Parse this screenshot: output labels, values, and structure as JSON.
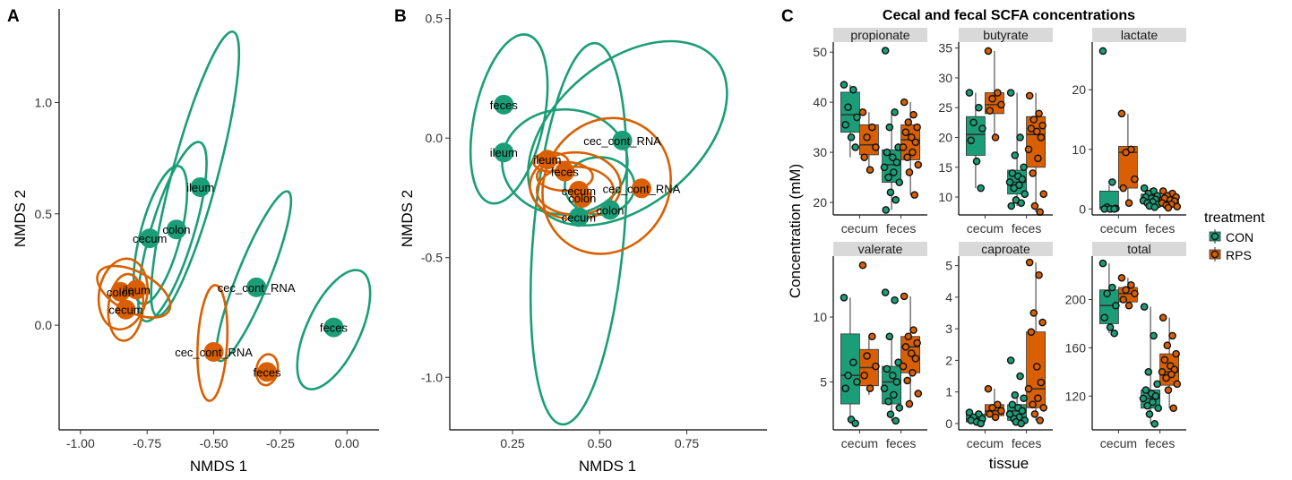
{
  "colors": {
    "CON": "#1b9e77",
    "RPS": "#d95f02",
    "strip": "#d9d9d9"
  },
  "legend": {
    "title": "treatment",
    "items": [
      "CON",
      "RPS"
    ]
  },
  "chart_data": [
    {
      "type": "scatter",
      "panel": "A",
      "title": "",
      "xlabel": "NMDS 1",
      "ylabel": "NMDS 2",
      "xlim": [
        -1.08,
        0.12
      ],
      "ylim": [
        -0.47,
        1.42
      ],
      "xticks": [
        -1.0,
        -0.75,
        -0.5,
        -0.25,
        0.0
      ],
      "xtick_labels": [
        "-1.00",
        "-0.75",
        "-0.50",
        "-0.25",
        "0.00"
      ],
      "yticks": [
        0.0,
        0.5,
        1.0
      ],
      "ytick_labels": [
        "0.0",
        "0.5",
        "1.0"
      ],
      "grid": false,
      "points": [
        {
          "label": "ileum",
          "treatment": "CON",
          "x": -0.55,
          "y": 0.62
        },
        {
          "label": "colon",
          "treatment": "CON",
          "x": -0.64,
          "y": 0.43
        },
        {
          "label": "cecum",
          "treatment": "CON",
          "x": -0.74,
          "y": 0.39
        },
        {
          "label": "cec_cont_RNA",
          "treatment": "CON",
          "x": -0.34,
          "y": 0.17
        },
        {
          "label": "feces",
          "treatment": "CON",
          "x": -0.05,
          "y": -0.01
        },
        {
          "label": "ileum",
          "treatment": "RPS",
          "x": -0.79,
          "y": 0.16
        },
        {
          "label": "colon",
          "treatment": "RPS",
          "x": -0.85,
          "y": 0.15
        },
        {
          "label": "cecum",
          "treatment": "RPS",
          "x": -0.83,
          "y": 0.07
        },
        {
          "label": "cec_cont_RNA",
          "treatment": "RPS",
          "x": -0.5,
          "y": -0.12
        },
        {
          "label": "feces",
          "treatment": "RPS",
          "x": -0.3,
          "y": -0.21
        }
      ],
      "ellipses": [
        {
          "treatment": "CON",
          "cx": -0.57,
          "cy": 0.68,
          "rx": 0.085,
          "ry": 0.66,
          "angle_deg": 15
        },
        {
          "treatment": "CON",
          "cx": -0.655,
          "cy": 0.42,
          "rx": 0.08,
          "ry": 0.42,
          "angle_deg": 17
        },
        {
          "treatment": "CON",
          "cx": -0.7,
          "cy": 0.405,
          "rx": 0.075,
          "ry": 0.32,
          "angle_deg": 15
        },
        {
          "treatment": "CON",
          "cx": -0.35,
          "cy": 0.22,
          "rx": 0.06,
          "ry": 0.41,
          "angle_deg": 22
        },
        {
          "treatment": "CON",
          "cx": -0.05,
          "cy": -0.02,
          "rx": 0.1,
          "ry": 0.29,
          "angle_deg": 25
        },
        {
          "treatment": "RPS",
          "cx": -0.8,
          "cy": 0.15,
          "rx": 0.15,
          "ry": 0.09,
          "angle_deg": 28
        },
        {
          "treatment": "RPS",
          "cx": -0.84,
          "cy": 0.14,
          "rx": 0.09,
          "ry": 0.16,
          "angle_deg": 10
        },
        {
          "treatment": "RPS",
          "cx": -0.83,
          "cy": 0.08,
          "rx": 0.065,
          "ry": 0.15,
          "angle_deg": 5
        },
        {
          "treatment": "RPS",
          "cx": -0.505,
          "cy": -0.08,
          "rx": 0.055,
          "ry": 0.26,
          "angle_deg": 3
        },
        {
          "treatment": "RPS",
          "cx": -0.3,
          "cy": -0.2,
          "rx": 0.04,
          "ry": 0.07,
          "angle_deg": 10
        }
      ]
    },
    {
      "type": "scatter",
      "panel": "B",
      "title": "",
      "xlabel": "NMDS 1",
      "ylabel": "NMDS 2",
      "xlim": [
        0.07,
        0.98
      ],
      "ylim": [
        -1.22,
        0.54
      ],
      "xticks": [
        0.25,
        0.5,
        0.75
      ],
      "xtick_labels": [
        "0.25",
        "0.50",
        "0.75"
      ],
      "yticks": [
        -1.0,
        -0.5,
        0.0,
        0.5
      ],
      "ytick_labels": [
        "-1.0",
        "-0.5",
        "0.0",
        "0.5"
      ],
      "grid": false,
      "points": [
        {
          "label": "feces",
          "treatment": "CON",
          "x": 0.225,
          "y": 0.14
        },
        {
          "label": "ileum",
          "treatment": "CON",
          "x": 0.225,
          "y": -0.06
        },
        {
          "label": "cec_cont_RNA",
          "treatment": "CON",
          "x": 0.565,
          "y": -0.01
        },
        {
          "label": "colon",
          "treatment": "CON",
          "x": 0.53,
          "y": -0.3
        },
        {
          "label": "cecum",
          "treatment": "CON",
          "x": 0.44,
          "y": -0.33
        },
        {
          "label": "ileum",
          "treatment": "RPS",
          "x": 0.35,
          "y": -0.09
        },
        {
          "label": "feces",
          "treatment": "RPS",
          "x": 0.4,
          "y": -0.14
        },
        {
          "label": "cecum",
          "treatment": "RPS",
          "x": 0.44,
          "y": -0.22
        },
        {
          "label": "colon",
          "treatment": "RPS",
          "x": 0.45,
          "y": -0.25
        },
        {
          "label": "cec_cont_RNA",
          "treatment": "RPS",
          "x": 0.62,
          "y": -0.21
        }
      ],
      "ellipses": [
        {
          "treatment": "CON",
          "cx": 0.24,
          "cy": 0.08,
          "rx": 0.1,
          "ry": 0.36,
          "angle_deg": 12
        },
        {
          "treatment": "CON",
          "cx": 0.44,
          "cy": -0.4,
          "rx": 0.13,
          "ry": 0.8,
          "angle_deg": 5
        },
        {
          "treatment": "CON",
          "cx": 0.58,
          "cy": 0.02,
          "rx": 0.33,
          "ry": 0.3,
          "angle_deg": -40
        },
        {
          "treatment": "CON",
          "cx": 0.4,
          "cy": -0.1,
          "rx": 0.18,
          "ry": 0.22,
          "angle_deg": 0
        },
        {
          "treatment": "CON",
          "cx": 0.5,
          "cy": -0.2,
          "rx": 0.1,
          "ry": 0.12,
          "angle_deg": 0
        },
        {
          "treatment": "RPS",
          "cx": 0.52,
          "cy": -0.2,
          "rx": 0.2,
          "ry": 0.26,
          "angle_deg": -60
        },
        {
          "treatment": "RPS",
          "cx": 0.43,
          "cy": -0.2,
          "rx": 0.13,
          "ry": 0.14,
          "angle_deg": 0
        },
        {
          "treatment": "RPS",
          "cx": 0.43,
          "cy": -0.22,
          "rx": 0.11,
          "ry": 0.1,
          "angle_deg": 0
        },
        {
          "treatment": "RPS",
          "cx": 0.4,
          "cy": -0.16,
          "rx": 0.08,
          "ry": 0.06,
          "angle_deg": 0
        },
        {
          "treatment": "RPS",
          "cx": 0.36,
          "cy": -0.1,
          "rx": 0.05,
          "ry": 0.04,
          "angle_deg": 0
        }
      ]
    },
    {
      "type": "box",
      "panel": "C",
      "title": "Cecal and fecal SCFA concentrations",
      "xlabel": "tissue",
      "ylabel": "Concentration (mM)",
      "categories": [
        "cecum",
        "feces"
      ],
      "facets": [
        {
          "name": "propionate",
          "ylim": [
            17.5,
            52
          ],
          "yticks": [
            20,
            30,
            40,
            50
          ],
          "boxes": [
            {
              "tissue": "cecum",
              "treatment": "CON",
              "q1": 34,
              "median": 37.5,
              "q3": 42,
              "wlo": 29,
              "whi": 43.5
            },
            {
              "tissue": "cecum",
              "treatment": "RPS",
              "q1": 29.5,
              "median": 31.5,
              "q3": 35.5,
              "wlo": 26.5,
              "whi": 38
            },
            {
              "tissue": "feces",
              "treatment": "CON",
              "q1": 24,
              "median": 27.5,
              "q3": 30.5,
              "wlo": 18.5,
              "whi": 38
            },
            {
              "tissue": "feces",
              "treatment": "RPS",
              "q1": 28.5,
              "median": 32.5,
              "q3": 35.5,
              "wlo": 21.5,
              "whi": 40
            }
          ],
          "points": {
            "cecum_CON": [
              43.5,
              42.5,
              39,
              37,
              35.5,
              33,
              31
            ],
            "cecum_RPS": [
              38,
              35,
              33,
              31,
              29,
              26.5
            ],
            "feces_CON": [
              50.3,
              38,
              35,
              31,
              30,
              29,
              28,
              27,
              26,
              25,
              24,
              22,
              20.5,
              18.5
            ],
            "feces_RPS": [
              40,
              37.5,
              36,
              35,
              34,
              33,
              32,
              31,
              30,
              29,
              27.5,
              26,
              21.5
            ]
          }
        },
        {
          "name": "butyrate",
          "ylim": [
            7,
            36
          ],
          "yticks": [
            10,
            15,
            20,
            25,
            30,
            35
          ],
          "boxes": [
            {
              "tissue": "cecum",
              "treatment": "CON",
              "q1": 17,
              "median": 20.5,
              "q3": 23.5,
              "wlo": 11.5,
              "whi": 27.5
            },
            {
              "tissue": "cecum",
              "treatment": "RPS",
              "q1": 24,
              "median": 25.5,
              "q3": 27.5,
              "wlo": 20,
              "whi": 34.5
            },
            {
              "tissue": "feces",
              "treatment": "CON",
              "q1": 10.5,
              "median": 12.5,
              "q3": 14.5,
              "wlo": 8.5,
              "whi": 27.5
            },
            {
              "tissue": "feces",
              "treatment": "RPS",
              "q1": 15,
              "median": 20.5,
              "q3": 23.5,
              "wlo": 7.5,
              "whi": 27.5
            }
          ],
          "points": {
            "cecum_CON": [
              27.5,
              25,
              22.5,
              21.5,
              19.5,
              16,
              11.5
            ],
            "cecum_RPS": [
              34.5,
              27.5,
              26.5,
              25.5,
              24.5,
              20
            ],
            "feces_CON": [
              27.5,
              20,
              17,
              15,
              14,
              13.5,
              13,
              12.5,
              12,
              11.5,
              10.5,
              9.5,
              9,
              8.5
            ],
            "feces_RPS": [
              27,
              24,
              23,
              22,
              21.5,
              21,
              20,
              18,
              16.5,
              14,
              10.5,
              8.5,
              7.5
            ]
          }
        },
        {
          "name": "lactate",
          "ylim": [
            -1,
            28
          ],
          "yticks": [
            0,
            10,
            20
          ],
          "boxes": [
            {
              "tissue": "cecum",
              "treatment": "CON",
              "q1": 0,
              "median": 0.3,
              "q3": 3,
              "wlo": 0,
              "whi": 4
            },
            {
              "tissue": "cecum",
              "treatment": "RPS",
              "q1": 3.5,
              "median": 9.5,
              "q3": 10.5,
              "wlo": 1,
              "whi": 16
            },
            {
              "tissue": "feces",
              "treatment": "CON",
              "q1": 1,
              "median": 1.7,
              "q3": 2.5,
              "wlo": 0.3,
              "whi": 3.5
            },
            {
              "tissue": "feces",
              "treatment": "RPS",
              "q1": 0.8,
              "median": 1.5,
              "q3": 2.2,
              "wlo": 0.2,
              "whi": 3
            }
          ],
          "points": {
            "cecum_CON": [
              26.5,
              4.5,
              0.3,
              0.1,
              0,
              0,
              0
            ],
            "cecum_RPS": [
              16,
              10,
              9.5,
              5,
              3.5,
              1
            ],
            "feces_CON": [
              3.5,
              3,
              2.6,
              2.2,
              2,
              1.8,
              1.6,
              1.4,
              1.2,
              1,
              0.8,
              0.5,
              0.3
            ],
            "feces_RPS": [
              3,
              2.6,
              2.2,
              2,
              1.8,
              1.5,
              1.3,
              1,
              0.8,
              0.6,
              0.4,
              0.2
            ]
          }
        },
        {
          "name": "valerate",
          "ylim": [
            1.3,
            14.7
          ],
          "yticks": [
            5,
            10
          ],
          "boxes": [
            {
              "tissue": "cecum",
              "treatment": "CON",
              "q1": 3.3,
              "median": 5.5,
              "q3": 8.7,
              "wlo": 1.8,
              "whi": 11.5
            },
            {
              "tissue": "cecum",
              "treatment": "RPS",
              "q1": 4.7,
              "median": 6.1,
              "q3": 7.5,
              "wlo": 4,
              "whi": 8.5
            },
            {
              "tissue": "feces",
              "treatment": "CON",
              "q1": 3.3,
              "median": 5,
              "q3": 6.2,
              "wlo": 2,
              "whi": 8.5
            },
            {
              "tissue": "feces",
              "treatment": "RPS",
              "q1": 5.7,
              "median": 7.7,
              "q3": 8.5,
              "wlo": 3.3,
              "whi": 11.6
            }
          ],
          "points": {
            "cecum_CON": [
              11.5,
              6.5,
              5.5,
              5,
              4.5,
              2.1,
              1.8
            ],
            "cecum_RPS": [
              14,
              8.5,
              7,
              6.2,
              5.5,
              4.5
            ],
            "feces_CON": [
              11.9,
              11.3,
              8.5,
              6.5,
              6,
              5.5,
              5,
              4.5,
              4,
              3.5,
              3,
              2.5,
              2
            ],
            "feces_RPS": [
              11.6,
              9,
              8.5,
              8,
              7.7,
              7.2,
              6.8,
              6.2,
              5.7,
              5.1,
              4.1,
              3.3
            ]
          }
        },
        {
          "name": "caproate",
          "ylim": [
            -0.2,
            5.3
          ],
          "yticks": [
            0,
            1,
            2,
            3,
            4,
            5
          ],
          "boxes": [
            {
              "tissue": "cecum",
              "treatment": "CON",
              "q1": 0.05,
              "median": 0.15,
              "q3": 0.3,
              "wlo": 0,
              "whi": 0.35
            },
            {
              "tissue": "cecum",
              "treatment": "RPS",
              "q1": 0.25,
              "median": 0.4,
              "q3": 0.6,
              "wlo": 0.1,
              "whi": 1.1
            },
            {
              "tissue": "feces",
              "treatment": "CON",
              "q1": 0.1,
              "median": 0.4,
              "q3": 0.6,
              "wlo": 0,
              "whi": 0.9
            },
            {
              "tissue": "feces",
              "treatment": "RPS",
              "q1": 0.5,
              "median": 1.1,
              "q3": 2.9,
              "wlo": 0.1,
              "whi": 5.1
            }
          ],
          "points": {
            "cecum_CON": [
              0.35,
              0.3,
              0.2,
              0.15,
              0.1,
              0.05,
              0
            ],
            "cecum_RPS": [
              1.1,
              0.6,
              0.5,
              0.4,
              0.3,
              0.2
            ],
            "feces_CON": [
              2,
              1.5,
              0.9,
              0.8,
              0.6,
              0.5,
              0.4,
              0.3,
              0.2,
              0.15,
              0.1,
              0.05,
              0
            ],
            "feces_RPS": [
              5.1,
              4.7,
              3.5,
              3.2,
              2.9,
              1.8,
              1.3,
              1.1,
              0.8,
              0.6,
              0.5,
              0.3,
              0.1
            ]
          }
        },
        {
          "name": "total",
          "ylim": [
            92,
            236
          ],
          "yticks": [
            120,
            160,
            200
          ],
          "boxes": [
            {
              "tissue": "cecum",
              "treatment": "CON",
              "q1": 180,
              "median": 195,
              "q3": 208,
              "wlo": 172,
              "whi": 230
            },
            {
              "tissue": "cecum",
              "treatment": "RPS",
              "q1": 198,
              "median": 205,
              "q3": 210,
              "wlo": 194,
              "whi": 218
            },
            {
              "tissue": "feces",
              "treatment": "CON",
              "q1": 110,
              "median": 118,
              "q3": 125,
              "wlo": 97,
              "whi": 194
            },
            {
              "tissue": "feces",
              "treatment": "RPS",
              "q1": 129,
              "median": 140,
              "q3": 155,
              "wlo": 110,
              "whi": 185
            }
          ],
          "points": {
            "cecum_CON": [
              230,
              210,
              205,
              195,
              185,
              177,
              172
            ],
            "cecum_RPS": [
              218,
              212,
              208,
              205,
              200,
              195
            ],
            "feces_CON": [
              194,
              170,
              140,
              130,
              125,
              122,
              120,
              118,
              115,
              112,
              110,
              105,
              97
            ],
            "feces_RPS": [
              185,
              170,
              162,
              155,
              150,
              145,
              142,
              140,
              138,
              135,
              130,
              125,
              110
            ]
          }
        }
      ]
    }
  ]
}
